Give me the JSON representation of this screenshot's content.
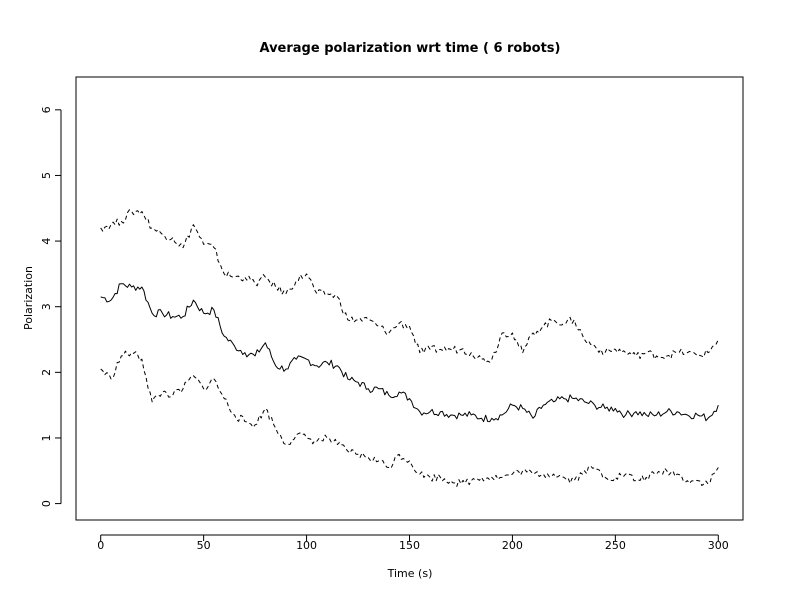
{
  "chart_data": {
    "type": "line",
    "title": "Average polarization wrt time ( 6 robots)",
    "xlabel": "Time (s)",
    "ylabel": "Polarization",
    "xlim": [
      -12,
      312
    ],
    "ylim": [
      -0.25,
      6.5
    ],
    "x_ticks": [
      0,
      50,
      100,
      150,
      200,
      250,
      300
    ],
    "y_ticks": [
      0,
      1,
      2,
      3,
      4,
      5,
      6
    ],
    "grid": false,
    "legend": "none",
    "x": [
      0,
      5,
      10,
      15,
      20,
      25,
      30,
      35,
      40,
      45,
      50,
      55,
      60,
      65,
      70,
      75,
      80,
      85,
      90,
      95,
      100,
      105,
      110,
      115,
      120,
      125,
      130,
      135,
      140,
      145,
      150,
      155,
      160,
      165,
      170,
      175,
      180,
      185,
      190,
      195,
      200,
      205,
      210,
      215,
      220,
      225,
      230,
      235,
      240,
      245,
      250,
      255,
      260,
      265,
      270,
      275,
      280,
      285,
      290,
      295,
      300
    ],
    "series": [
      {
        "style": "solid",
        "color": "#000000",
        "values": [
          3.15,
          3.1,
          3.35,
          3.3,
          3.3,
          2.9,
          2.9,
          2.85,
          2.85,
          3.1,
          2.9,
          2.95,
          2.55,
          2.4,
          2.3,
          2.25,
          2.45,
          2.1,
          2.05,
          2.2,
          2.2,
          2.1,
          2.15,
          2.1,
          1.9,
          1.85,
          1.75,
          1.75,
          1.65,
          1.7,
          1.6,
          1.4,
          1.4,
          1.4,
          1.35,
          1.35,
          1.35,
          1.3,
          1.3,
          1.35,
          1.5,
          1.45,
          1.3,
          1.5,
          1.55,
          1.6,
          1.6,
          1.55,
          1.5,
          1.45,
          1.45,
          1.35,
          1.4,
          1.35,
          1.35,
          1.4,
          1.4,
          1.35,
          1.35,
          1.3,
          1.5
        ]
      },
      {
        "style": "dashed",
        "color": "#000000",
        "values": [
          4.2,
          4.25,
          4.3,
          4.45,
          4.45,
          4.2,
          4.1,
          4.05,
          3.9,
          4.25,
          3.95,
          3.9,
          3.5,
          3.45,
          3.45,
          3.35,
          3.45,
          3.3,
          3.2,
          3.4,
          3.5,
          3.2,
          3.2,
          3.15,
          2.8,
          2.8,
          2.8,
          2.7,
          2.6,
          2.75,
          2.7,
          2.3,
          2.35,
          2.35,
          2.35,
          2.35,
          2.3,
          2.2,
          2.2,
          2.6,
          2.6,
          2.3,
          2.6,
          2.7,
          2.8,
          2.75,
          2.8,
          2.5,
          2.4,
          2.3,
          2.35,
          2.3,
          2.25,
          2.3,
          2.25,
          2.25,
          2.3,
          2.3,
          2.25,
          2.3,
          2.5
        ]
      },
      {
        "style": "dashed",
        "color": "#000000",
        "values": [
          2.05,
          1.9,
          2.25,
          2.3,
          2.2,
          1.55,
          1.7,
          1.65,
          1.75,
          1.95,
          1.75,
          1.9,
          1.6,
          1.35,
          1.25,
          1.2,
          1.45,
          1.15,
          0.9,
          1.05,
          1.0,
          0.95,
          1.0,
          0.9,
          0.8,
          0.75,
          0.7,
          0.65,
          0.55,
          0.75,
          0.65,
          0.45,
          0.4,
          0.4,
          0.35,
          0.3,
          0.35,
          0.4,
          0.4,
          0.4,
          0.45,
          0.5,
          0.45,
          0.45,
          0.45,
          0.4,
          0.35,
          0.5,
          0.55,
          0.4,
          0.4,
          0.45,
          0.35,
          0.4,
          0.45,
          0.5,
          0.45,
          0.35,
          0.35,
          0.3,
          0.55
        ]
      }
    ]
  }
}
